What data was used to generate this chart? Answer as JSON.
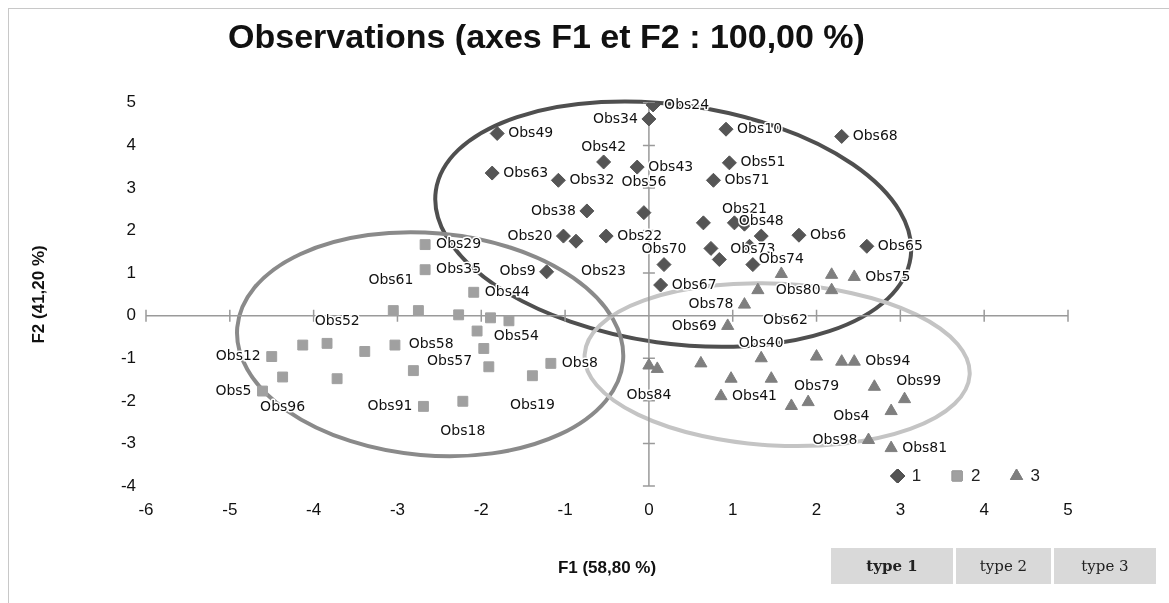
{
  "chart_data": {
    "type": "scatter",
    "title": "Observations (axes F1 et F2 : 100,00 %)",
    "xlabel": "F1 (58,80 %)",
    "ylabel": "F2 (41,20 %)",
    "xlim": [
      -6,
      5
    ],
    "xticks": [
      -6,
      -5,
      -4,
      -3,
      -2,
      -1,
      0,
      1,
      2,
      3,
      4,
      5
    ],
    "ylim": [
      -4,
      5
    ],
    "yticks": [
      -4,
      -3,
      -2,
      -1,
      0,
      1,
      2,
      3,
      4,
      5
    ],
    "legend": "bottom right",
    "series": [
      {
        "name": "1",
        "color": "#555555",
        "marker": "diamond",
        "x": [
          0.05,
          0,
          -1.81,
          -1.87,
          -1.08,
          -0.54,
          -0.14,
          -0.74,
          -0.06,
          -0.87,
          -1.02,
          -0.51,
          -1.22,
          0.92,
          2.3,
          0.96,
          0.77,
          0.65,
          1.02,
          1.14,
          1.79,
          1.34,
          2.6,
          0.74,
          1.2,
          0.18,
          0.84,
          1.24,
          0.14
        ],
        "values": [
          4.95,
          4.62,
          4.28,
          3.35,
          3.18,
          3.61,
          3.49,
          2.46,
          2.42,
          1.75,
          1.87,
          1.87,
          1.03,
          4.38,
          4.21,
          3.59,
          3.18,
          2.18,
          2.18,
          2.15,
          1.89,
          1.87,
          1.63,
          1.58,
          1.63,
          1.2,
          1.32,
          1.2,
          0.72
        ],
        "value_labels": [
          "Obs24",
          "Obs34",
          "Obs49",
          "Obs63",
          "Obs32",
          "Obs42",
          "Obs43",
          "Obs38",
          "Obs56",
          "Obs23",
          "Obs20",
          "Obs22",
          "Obs9",
          "Obs10",
          "Obs68",
          "Obs51",
          "Obs71",
          null,
          null,
          "Obs21",
          "Obs6",
          "Obs48",
          "Obs65",
          null,
          null,
          "Obs70",
          null,
          "Obs73",
          "Obs67"
        ]
      },
      {
        "name": "2",
        "color": "#a0a0a0",
        "marker": "square",
        "x": [
          -2.67,
          -2.67,
          -2.09,
          -3.05,
          -2.75,
          -2.27,
          -1.89,
          -1.67,
          -2.05,
          -1.97,
          -4.5,
          -4.13,
          -3.84,
          -3.39,
          -3.03,
          -1.91,
          -1.17,
          -1.39,
          -2.69,
          -2.22,
          -4.37,
          -4.61,
          -2.81,
          -3.72
        ],
        "values": [
          1.67,
          1.08,
          0.55,
          0.12,
          0.12,
          0.02,
          -0.05,
          -0.12,
          -0.36,
          -0.77,
          -0.96,
          -0.69,
          -0.65,
          -0.84,
          -0.69,
          -1.2,
          -1.12,
          -1.41,
          -2.13,
          -2.01,
          -1.44,
          -1.77,
          -1.29,
          -1.48
        ],
        "value_labels": [
          "Obs29",
          "Obs35",
          "Obs44",
          null,
          "Obs61",
          "Obs58",
          null,
          null,
          "Obs57",
          null,
          "Obs12",
          null,
          null,
          "Obs52",
          null,
          "Obs54",
          "Obs8",
          "Obs19",
          "Obs91",
          "Obs18",
          "Obs96",
          "Obs5",
          null,
          null
        ]
      },
      {
        "name": "3",
        "color": "#7f7f7f",
        "marker": "triangle",
        "x": [
          1.58,
          2.18,
          2.45,
          2.18,
          1.3,
          1.14,
          0.94,
          0,
          0.1,
          0.62,
          1.34,
          2.0,
          2.45,
          2.3,
          0.86,
          0.98,
          1.46,
          2.69,
          3.05,
          2.89,
          1.9,
          1.7,
          2.62,
          2.89
        ],
        "values": [
          0.98,
          0.96,
          0.91,
          0.6,
          0.6,
          0.26,
          -0.24,
          -1.17,
          -1.25,
          -1.12,
          -1.0,
          -0.96,
          -1.08,
          -1.08,
          -1.89,
          -1.48,
          -1.48,
          -1.67,
          -1.96,
          -2.24,
          -2.03,
          -2.12,
          -2.92,
          -3.11
        ],
        "value_labels": [
          "Obs74",
          null,
          "Obs75",
          "Obs80",
          "Obs62",
          "Obs78",
          "Obs69",
          "Obs84",
          null,
          null,
          "Obs40",
          "Obs79",
          "Obs94",
          null,
          "Obs41",
          null,
          null,
          "Obs4",
          null,
          "Obs99",
          null,
          null,
          "Obs98",
          "Obs81"
        ]
      }
    ],
    "annotations": [
      "type 1",
      "type 2",
      "type 3"
    ]
  }
}
